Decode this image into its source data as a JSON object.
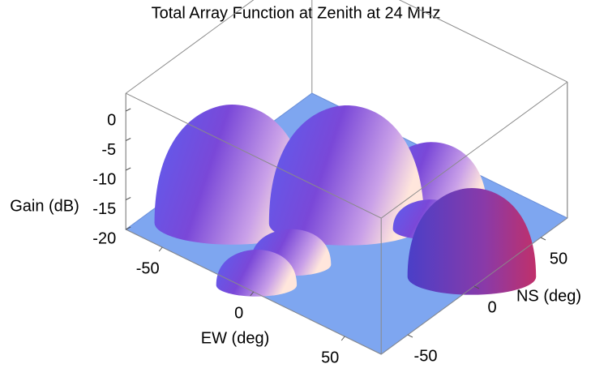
{
  "chart_data": {
    "type": "surface3d",
    "title": "Total Array Function at Zenith at 24 MHz",
    "xlabel": "EW (deg)",
    "ylabel": "NS (deg)",
    "zlabel": "Gain (dB)",
    "xlim": [
      -70,
      70
    ],
    "ylim": [
      -70,
      70
    ],
    "zlim": [
      -20,
      3
    ],
    "xticks": [
      -50,
      0,
      50
    ],
    "yticks": [
      -50,
      0,
      50
    ],
    "zticks": [
      -20,
      -15,
      -10,
      -5,
      0
    ],
    "floor_color": "#7ea6f0",
    "peaks": {
      "ew": [
        -38,
        0,
        23,
        30,
        65,
        0,
        -2
      ],
      "ns": [
        -34,
        0,
        32,
        22,
        5,
        -42,
        -65
      ],
      "gain": [
        0,
        0,
        -8,
        -15,
        -5,
        -14,
        -14
      ]
    }
  }
}
